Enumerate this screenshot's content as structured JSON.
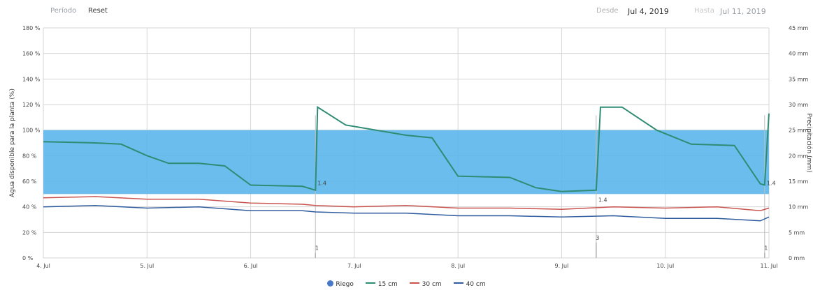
{
  "toolbar": {
    "period_label": "Período",
    "reset_label": "Reset",
    "from_label": "Desde",
    "from_value": "Jul 4, 2019",
    "to_label": "Hasta",
    "to_value": "Jul 11, 2019"
  },
  "colors": {
    "band": "#5ab6ea",
    "riego": "#4a78c8",
    "cm15": "#2f8c74",
    "cm30": "#c9544f",
    "cm40": "#2f5c9e",
    "grid": "#d6d6d6"
  },
  "chart_data": {
    "type": "line",
    "ylabel": "Agua disponible para la planta (%)",
    "y2label": "Precipitación (mm)",
    "ylim": [
      0,
      180
    ],
    "y2lim": [
      0,
      45
    ],
    "xlim": [
      "2019-07-04",
      "2019-07-11"
    ],
    "yticks": [
      0,
      20,
      40,
      60,
      80,
      100,
      120,
      140,
      160,
      180
    ],
    "y2ticks": [
      0,
      5,
      10,
      15,
      20,
      25,
      30,
      35,
      40,
      45
    ],
    "ytick_labels": [
      "0 %",
      "20 %",
      "40 %",
      "60 %",
      "80 %",
      "100 %",
      "120 %",
      "140 %",
      "160 %",
      "180 %"
    ],
    "y2tick_labels": [
      "0 mm",
      "5 mm",
      "10 mm",
      "15 mm",
      "20 mm",
      "25 mm",
      "30 mm",
      "35 mm",
      "40 mm",
      "45 mm"
    ],
    "xticks": [
      "2019-07-04",
      "2019-07-05",
      "2019-07-06",
      "2019-07-07",
      "2019-07-08",
      "2019-07-09",
      "2019-07-10",
      "2019-07-11"
    ],
    "xtick_labels": [
      "4. Jul",
      "5. Jul",
      "6. Jul",
      "7. Jul",
      "8. Jul",
      "9. Jul",
      "10. Jul",
      "11. Jul"
    ],
    "band": {
      "from": 50,
      "to": 100
    },
    "series": [
      {
        "name": "Riego",
        "type": "bar",
        "axis": "y2",
        "points": [
          {
            "x": "2019-07-06T15:00",
            "y": 1,
            "label": "1"
          },
          {
            "x": "2019-07-09T08:00",
            "y": 3,
            "label": "3"
          },
          {
            "x": "2019-07-10T23:00",
            "y": 1,
            "label": "1"
          }
        ]
      },
      {
        "name": "15 cm",
        "type": "line",
        "points": [
          [
            "2019-07-04T00:00",
            91
          ],
          [
            "2019-07-04T12:00",
            90
          ],
          [
            "2019-07-04T18:00",
            89
          ],
          [
            "2019-07-05T00:00",
            80
          ],
          [
            "2019-07-05T05:00",
            74
          ],
          [
            "2019-07-05T12:00",
            74
          ],
          [
            "2019-07-05T18:00",
            72
          ],
          [
            "2019-07-06T00:00",
            57
          ],
          [
            "2019-07-06T12:00",
            56
          ],
          [
            "2019-07-06T15:00",
            53
          ],
          [
            "2019-07-06T15:30",
            118
          ],
          [
            "2019-07-06T22:00",
            104
          ],
          [
            "2019-07-07T12:00",
            96
          ],
          [
            "2019-07-07T18:00",
            94
          ],
          [
            "2019-07-08T00:00",
            64
          ],
          [
            "2019-07-08T12:00",
            63
          ],
          [
            "2019-07-08T18:00",
            55
          ],
          [
            "2019-07-09T00:00",
            52
          ],
          [
            "2019-07-09T08:00",
            53
          ],
          [
            "2019-07-09T09:00",
            118
          ],
          [
            "2019-07-09T14:00",
            118
          ],
          [
            "2019-07-09T22:00",
            100
          ],
          [
            "2019-07-10T06:00",
            89
          ],
          [
            "2019-07-10T16:00",
            88
          ],
          [
            "2019-07-10T22:00",
            58
          ],
          [
            "2019-07-10T23:00",
            57
          ],
          [
            "2019-07-11T00:00",
            113
          ]
        ],
        "point_labels": [
          {
            "x": "2019-07-06T15:00",
            "y": 57,
            "label": "1.4"
          },
          {
            "x": "2019-07-09T08:00",
            "y": 44,
            "label": "1.4"
          },
          {
            "x": "2019-07-10T23:00",
            "y": 57,
            "label": "1.4"
          }
        ]
      },
      {
        "name": "30 cm",
        "type": "line",
        "points": [
          [
            "2019-07-04T00:00",
            47
          ],
          [
            "2019-07-04T12:00",
            48
          ],
          [
            "2019-07-05T00:00",
            46
          ],
          [
            "2019-07-05T12:00",
            46
          ],
          [
            "2019-07-06T00:00",
            43
          ],
          [
            "2019-07-06T12:00",
            42
          ],
          [
            "2019-07-06T15:00",
            41
          ],
          [
            "2019-07-07T00:00",
            40
          ],
          [
            "2019-07-07T12:00",
            41
          ],
          [
            "2019-07-08T00:00",
            39
          ],
          [
            "2019-07-08T12:00",
            39
          ],
          [
            "2019-07-09T00:00",
            38
          ],
          [
            "2019-07-09T12:00",
            40
          ],
          [
            "2019-07-10T00:00",
            39
          ],
          [
            "2019-07-10T12:00",
            40
          ],
          [
            "2019-07-10T22:00",
            37
          ],
          [
            "2019-07-11T00:00",
            39
          ]
        ]
      },
      {
        "name": "40 cm",
        "type": "line",
        "points": [
          [
            "2019-07-04T00:00",
            40
          ],
          [
            "2019-07-04T12:00",
            41
          ],
          [
            "2019-07-05T00:00",
            39
          ],
          [
            "2019-07-05T12:00",
            40
          ],
          [
            "2019-07-06T00:00",
            37
          ],
          [
            "2019-07-06T12:00",
            37
          ],
          [
            "2019-07-06T15:00",
            36
          ],
          [
            "2019-07-07T00:00",
            35
          ],
          [
            "2019-07-07T12:00",
            35
          ],
          [
            "2019-07-08T00:00",
            33
          ],
          [
            "2019-07-08T12:00",
            33
          ],
          [
            "2019-07-09T00:00",
            32
          ],
          [
            "2019-07-09T12:00",
            33
          ],
          [
            "2019-07-10T00:00",
            31
          ],
          [
            "2019-07-10T12:00",
            31
          ],
          [
            "2019-07-10T22:00",
            29
          ],
          [
            "2019-07-11T00:00",
            32
          ]
        ]
      }
    ],
    "legend": {
      "position": "bottom-center",
      "items": [
        "Riego",
        "15 cm",
        "30 cm",
        "40 cm"
      ]
    }
  }
}
